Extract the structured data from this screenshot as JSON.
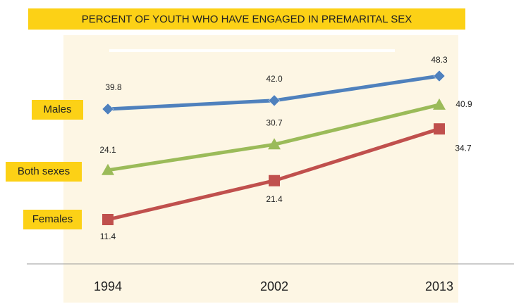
{
  "chart_data": {
    "type": "line",
    "title": "PERCENT OF YOUTH WHO HAVE ENGAGED IN PREMARITAL SEX",
    "categories": [
      "1994",
      "2002",
      "2013"
    ],
    "series": [
      {
        "name": "Males",
        "color": "#4f81bd",
        "values": [
          39.8,
          42.0,
          48.3
        ],
        "value_labels": [
          "39.8",
          "42.0",
          "48.3"
        ]
      },
      {
        "name": "Both sexes",
        "color": "#9bbb59",
        "values": [
          24.1,
          30.7,
          40.9
        ],
        "value_labels": [
          "24.1",
          "30.7",
          "40.9"
        ]
      },
      {
        "name": "Females",
        "color": "#c0504d",
        "values": [
          11.4,
          21.4,
          34.7
        ],
        "value_labels": [
          "11.4",
          "21.4",
          "34.7"
        ]
      }
    ]
  }
}
